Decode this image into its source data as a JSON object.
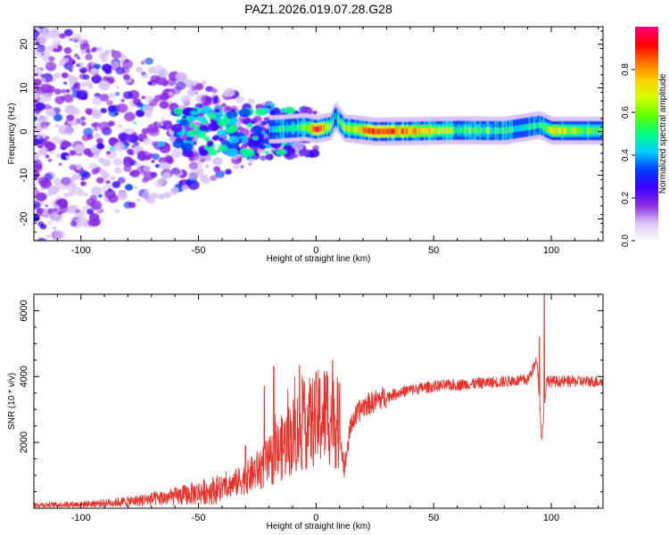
{
  "title": "PAZ1.2026.019.07.28.G28",
  "chart_data": [
    {
      "type": "heatmap",
      "xlabel": "Height of straight line (km)",
      "ylabel": "Frequency (Hz)",
      "xlim": [
        -120,
        122
      ],
      "ylim": [
        -25,
        24
      ],
      "xticks": [
        -100,
        -50,
        0,
        50,
        100
      ],
      "yticks": [
        -20,
        -10,
        0,
        10,
        20
      ],
      "colorbar": {
        "label": "Normalized spectral amplitude",
        "range": [
          0.0,
          1.0
        ],
        "ticks": [
          "0.0",
          "0.2",
          "0.4",
          "0.6",
          "0.8"
        ],
        "colors": [
          "#ffffff",
          "#d9c2f5",
          "#8a2be2",
          "#3a00ff",
          "#0040ff",
          "#00d0ff",
          "#00ff80",
          "#60ff00",
          "#d0ff00",
          "#ffd000",
          "#ff7000",
          "#ff0000",
          "#ff0080"
        ]
      },
      "ridge": [
        {
          "x": -18,
          "f": 0.5,
          "a": 0.45
        },
        {
          "x": -10,
          "f": 0.8,
          "a": 0.5
        },
        {
          "x": -5,
          "f": 1.0,
          "a": 0.55
        },
        {
          "x": 0,
          "f": 0.5,
          "a": 0.95
        },
        {
          "x": 6,
          "f": 1.2,
          "a": 0.6
        },
        {
          "x": 8,
          "f": 3.5,
          "a": 0.45
        },
        {
          "x": 12,
          "f": 0.8,
          "a": 0.6
        },
        {
          "x": 17,
          "f": 0.5,
          "a": 0.7
        },
        {
          "x": 25,
          "f": 0.0,
          "a": 0.9
        },
        {
          "x": 40,
          "f": 0.1,
          "a": 0.8
        },
        {
          "x": 60,
          "f": 0.3,
          "a": 0.55
        },
        {
          "x": 80,
          "f": 0.2,
          "a": 0.5
        },
        {
          "x": 95,
          "f": 1.5,
          "a": 0.45
        },
        {
          "x": 100,
          "f": 0.2,
          "a": 0.75
        },
        {
          "x": 122,
          "f": 0.2,
          "a": 0.55
        }
      ]
    },
    {
      "type": "line",
      "xlabel": "Height of straight line (km)",
      "ylabel": "SNR (10 * v/v)",
      "xlim": [
        -120,
        122
      ],
      "ylim": [
        0,
        6500
      ],
      "xticks": [
        -100,
        -50,
        0,
        50,
        100
      ],
      "yticks": [
        2000,
        4000,
        6000
      ],
      "color": "#e8302a",
      "series": [
        {
          "name": "SNR",
          "x": [
            -120,
            -100,
            -80,
            -60,
            -40,
            -30,
            -20,
            -10,
            -5,
            0,
            5,
            10,
            12,
            15,
            20,
            30,
            40,
            50,
            60,
            70,
            80,
            90,
            94,
            96,
            98,
            100,
            110,
            122
          ],
          "values": [
            100,
            120,
            200,
            350,
            600,
            900,
            1400,
            2200,
            2500,
            2700,
            2900,
            2400,
            1200,
            2600,
            3100,
            3400,
            3600,
            3700,
            3750,
            3800,
            3850,
            3900,
            4500,
            2100,
            3900,
            3850,
            3850,
            3850
          ]
        }
      ],
      "spikes": [
        {
          "x": -30,
          "y": 1900
        },
        {
          "x": -22,
          "y": 3700
        },
        {
          "x": -18,
          "y": 4300
        },
        {
          "x": -7,
          "y": 4350
        },
        {
          "x": 7,
          "y": 4500
        },
        {
          "x": 10,
          "y": 3800
        },
        {
          "x": 95,
          "y": 5200
        },
        {
          "x": 97,
          "y": 6500
        }
      ]
    }
  ]
}
